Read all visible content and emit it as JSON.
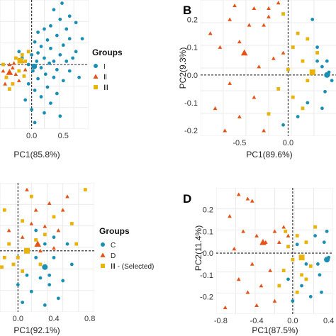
{
  "colors": {
    "circle": "#1a8fb3",
    "triangle": "#e3541a",
    "square": "#e8b40c"
  },
  "chart_data": [
    {
      "type": "scatter",
      "panel_label": "",
      "xlabel": "PC1(85.8%)",
      "ylabel": "",
      "xlim": [
        -0.5,
        0.9
      ],
      "ylim": [
        -1.0,
        1.0
      ],
      "xticks": [
        0.0,
        0.5
      ],
      "xtick_labels": [
        "0.0",
        "0.5"
      ],
      "yticks": [],
      "grid": true,
      "zero_lines": true,
      "legend": {
        "title": "Groups",
        "position": "right",
        "entries": [
          {
            "label": "I",
            "shape": "circle"
          },
          {
            "label": "Ⅱ",
            "shape": "triangle"
          },
          {
            "label": "Ⅲ",
            "shape": "square"
          }
        ]
      },
      "series": [
        {
          "shape": "circle",
          "big_point": [
            0.04,
            -0.03
          ],
          "points": [
            [
              0.48,
              0.95
            ],
            [
              0.35,
              0.85
            ],
            [
              0.6,
              0.75
            ],
            [
              0.45,
              0.7
            ],
            [
              0.7,
              0.65
            ],
            [
              0.3,
              0.6
            ],
            [
              0.2,
              0.55
            ],
            [
              0.55,
              0.55
            ],
            [
              0.1,
              0.5
            ],
            [
              0.4,
              0.45
            ],
            [
              0.6,
              0.4
            ],
            [
              0.25,
              0.38
            ],
            [
              0.05,
              0.35
            ],
            [
              0.5,
              0.3
            ],
            [
              0.15,
              0.28
            ],
            [
              0.3,
              0.25
            ],
            [
              0.7,
              0.2
            ],
            [
              0.1,
              0.18
            ],
            [
              0.45,
              0.15
            ],
            [
              0.0,
              0.15
            ],
            [
              0.2,
              0.1
            ],
            [
              0.35,
              0.05
            ],
            [
              0.55,
              0.05
            ],
            [
              0.08,
              0.05
            ],
            [
              0.28,
              0.02
            ],
            [
              -0.05,
              0.0
            ],
            [
              0.15,
              -0.05
            ],
            [
              0.4,
              -0.08
            ],
            [
              0.6,
              -0.1
            ],
            [
              0.02,
              -0.1
            ],
            [
              0.22,
              -0.15
            ],
            [
              0.35,
              -0.2
            ],
            [
              0.1,
              -0.22
            ],
            [
              0.5,
              -0.25
            ],
            [
              -0.05,
              -0.3
            ],
            [
              0.25,
              -0.35
            ],
            [
              0.05,
              -0.4
            ],
            [
              0.4,
              -0.45
            ],
            [
              0.15,
              -0.5
            ],
            [
              -0.1,
              -0.55
            ],
            [
              0.3,
              -0.6
            ],
            [
              0.0,
              -0.7
            ],
            [
              0.2,
              -0.75
            ],
            [
              0.45,
              -0.8
            ],
            [
              0.05,
              -0.9
            ],
            [
              0.75,
              -0.2
            ],
            [
              0.65,
              0.1
            ],
            [
              0.8,
              0.4
            ],
            [
              -0.2,
              0.2
            ],
            [
              -0.15,
              0.1
            ]
          ]
        },
        {
          "shape": "triangle",
          "big_point": [
            -0.35,
            -0.12
          ],
          "points": [
            [
              -0.45,
              -0.1
            ],
            [
              -0.4,
              -0.2
            ],
            [
              -0.3,
              -0.05
            ],
            [
              -0.25,
              -0.15
            ],
            [
              -0.2,
              -0.25
            ],
            [
              -0.35,
              0.0
            ],
            [
              -0.15,
              0.05
            ],
            [
              -0.1,
              -0.08
            ],
            [
              -0.42,
              -0.3
            ],
            [
              -0.28,
              0.02
            ]
          ]
        },
        {
          "shape": "square",
          "big_point": [
            -0.18,
            0.06
          ],
          "points": [
            [
              -0.4,
              -0.2
            ],
            [
              -0.3,
              -0.3
            ],
            [
              -0.25,
              0.1
            ],
            [
              -0.15,
              0.15
            ],
            [
              -0.2,
              -0.1
            ],
            [
              -0.45,
              0.0
            ],
            [
              -0.1,
              0.05
            ],
            [
              -0.05,
              0.2
            ],
            [
              -0.35,
              -0.38
            ],
            [
              -0.12,
              -0.18
            ]
          ]
        }
      ]
    },
    {
      "type": "scatter",
      "panel_label": "B",
      "xlabel": "PC1(89.6%)",
      "ylabel": "PC2(9.3%)",
      "xlim": [
        -0.9,
        0.5
      ],
      "ylim": [
        -0.22,
        0.27
      ],
      "xticks": [
        -0.5,
        0.0
      ],
      "xtick_labels": [
        "-0.5",
        "0.0"
      ],
      "yticks": [
        0.2,
        0.1,
        0.0,
        -0.1,
        -0.2
      ],
      "ytick_labels": [
        "0.2",
        "0.1",
        "0.0",
        "-0.1",
        "-0.2"
      ],
      "grid": true,
      "zero_lines": true,
      "series": [
        {
          "shape": "circle",
          "big_point": [
            0.4,
            0.0
          ],
          "points": [
            [
              0.25,
              0.2
            ],
            [
              0.3,
              0.1
            ],
            [
              0.35,
              0.03
            ],
            [
              0.42,
              0.01
            ],
            [
              0.45,
              -0.02
            ],
            [
              0.38,
              -0.06
            ],
            [
              0.3,
              0.05
            ],
            [
              0.2,
              -0.1
            ],
            [
              0.1,
              -0.15
            ],
            [
              -0.05,
              -0.18
            ],
            [
              0.35,
              -0.12
            ],
            [
              0.4,
              0.05
            ]
          ]
        },
        {
          "shape": "triangle",
          "big_point": [
            -0.45,
            0.08
          ],
          "points": [
            [
              -0.55,
              0.25
            ],
            [
              -0.35,
              0.24
            ],
            [
              -0.2,
              0.24
            ],
            [
              -0.1,
              0.26
            ],
            [
              -0.8,
              0.15
            ],
            [
              -0.6,
              0.2
            ],
            [
              -0.4,
              0.18
            ],
            [
              -0.25,
              0.18
            ],
            [
              -0.7,
              0.1
            ],
            [
              -0.5,
              0.12
            ],
            [
              -0.15,
              0.06
            ],
            [
              -0.3,
              0.03
            ],
            [
              -0.6,
              -0.03
            ],
            [
              -0.35,
              -0.08
            ],
            [
              -0.75,
              -0.12
            ],
            [
              -0.5,
              -0.15
            ],
            [
              -0.25,
              -0.2
            ],
            [
              -0.65,
              -0.2
            ],
            [
              -0.05,
              0.08
            ],
            [
              -0.2,
              0.21
            ]
          ]
        },
        {
          "shape": "square",
          "big_point": [
            0.25,
            0.01
          ],
          "points": [
            [
              0.1,
              0.15
            ],
            [
              0.2,
              0.13
            ],
            [
              0.05,
              0.1
            ],
            [
              0.15,
              0.05
            ],
            [
              0.0,
              0.02
            ],
            [
              -0.1,
              -0.05
            ],
            [
              0.05,
              -0.08
            ],
            [
              0.15,
              -0.12
            ],
            [
              -0.2,
              -0.14
            ],
            [
              0.2,
              -0.02
            ],
            [
              -0.05,
              0.22
            ],
            [
              0.3,
              0.08
            ]
          ]
        }
      ]
    },
    {
      "type": "scatter",
      "panel_label": "",
      "xlabel": "PC1(92.1%)",
      "ylabel": "",
      "xlim": [
        -0.2,
        0.85
      ],
      "ylim": [
        -0.45,
        0.5
      ],
      "xticks": [
        0.0,
        0.4,
        0.8
      ],
      "xtick_labels": [
        "0.0",
        "0.4",
        "0.8"
      ],
      "yticks": [],
      "grid": true,
      "zero_lines": true,
      "legend": {
        "title": "Groups",
        "position": "right",
        "entries": [
          {
            "label": "C",
            "shape": "circle"
          },
          {
            "label": "D",
            "shape": "triangle"
          },
          {
            "label": "Ⅲ - (Selected)",
            "shape": "square"
          }
        ]
      },
      "series": [
        {
          "shape": "circle",
          "big_point": [
            0.3,
            -0.12
          ],
          "points": [
            [
              0.2,
              0.15
            ],
            [
              0.3,
              0.05
            ],
            [
              0.4,
              -0.05
            ],
            [
              0.25,
              -0.2
            ],
            [
              0.35,
              -0.25
            ],
            [
              0.15,
              -0.3
            ],
            [
              0.1,
              -0.18
            ],
            [
              0.45,
              -0.35
            ],
            [
              0.3,
              -0.4
            ],
            [
              0.5,
              -0.22
            ],
            [
              0.05,
              -0.38
            ],
            [
              0.4,
              0.1
            ],
            [
              0.6,
              -0.1
            ],
            [
              0.2,
              -0.05
            ],
            [
              0.55,
              0.05
            ],
            [
              0.35,
              -0.18
            ],
            [
              0.0,
              -0.25
            ]
          ]
        },
        {
          "shape": "triangle",
          "big_point": [
            0.22,
            0.05
          ],
          "points": [
            [
              0.1,
              0.45
            ],
            [
              0.2,
              0.3
            ],
            [
              0.35,
              0.35
            ],
            [
              0.5,
              0.3
            ],
            [
              0.15,
              0.2
            ],
            [
              0.3,
              0.18
            ],
            [
              0.45,
              0.15
            ],
            [
              0.05,
              0.1
            ],
            [
              0.4,
              0.02
            ],
            [
              0.25,
              0.0
            ],
            [
              -0.1,
              0.15
            ],
            [
              0.55,
              0.4
            ]
          ]
        },
        {
          "shape": "square",
          "big_point": [
            0.1,
            0.0
          ],
          "points": [
            [
              0.75,
              0.45
            ],
            [
              0.6,
              0.2
            ],
            [
              0.4,
              0.25
            ],
            [
              0.3,
              0.12
            ],
            [
              0.2,
              0.08
            ],
            [
              -0.1,
              0.05
            ],
            [
              -0.05,
              -0.1
            ],
            [
              -0.15,
              -0.05
            ],
            [
              0.0,
              -0.05
            ],
            [
              0.05,
              -0.15
            ],
            [
              0.25,
              -0.1
            ],
            [
              -0.15,
              0.3
            ],
            [
              0.65,
              0.05
            ],
            [
              0.15,
              0.4
            ],
            [
              0.05,
              0.22
            ],
            [
              -0.18,
              -0.12
            ]
          ]
        }
      ]
    },
    {
      "type": "scatter",
      "panel_label": "D",
      "xlabel": "PC1(87.5%)",
      "ylabel": "PC2(11.4%)",
      "xlim": [
        -0.85,
        0.45
      ],
      "ylim": [
        -0.28,
        0.3
      ],
      "xticks": [
        -0.8,
        -0.4,
        0.0,
        0.4
      ],
      "xtick_labels": [
        "-0.8",
        "-0.4",
        "0.0",
        "0.4"
      ],
      "yticks": [
        0.2,
        0.1,
        0.0,
        -0.1,
        -0.2
      ],
      "ytick_labels": [
        "0.2",
        "0.1",
        "0.0",
        "-0.1",
        "-0.2"
      ],
      "grid": true,
      "zero_lines": true,
      "series": [
        {
          "shape": "circle",
          "big_point": [
            0.38,
            -0.03
          ],
          "points": [
            [
              0.35,
              0.05
            ],
            [
              0.4,
              -0.02
            ],
            [
              0.3,
              -0.1
            ],
            [
              0.25,
              0.08
            ],
            [
              0.15,
              -0.05
            ],
            [
              0.2,
              -0.2
            ],
            [
              0.1,
              -0.15
            ],
            [
              0.0,
              -0.22
            ],
            [
              0.32,
              -0.18
            ],
            [
              0.05,
              0.04
            ],
            [
              -0.05,
              -0.12
            ],
            [
              0.28,
              -0.05
            ],
            [
              0.38,
              0.1
            ]
          ]
        },
        {
          "shape": "triangle",
          "big_point": [
            -0.33,
            0.05
          ],
          "points": [
            [
              -0.6,
              0.27
            ],
            [
              -0.5,
              0.25
            ],
            [
              -0.45,
              0.24
            ],
            [
              -0.7,
              0.17
            ],
            [
              -0.55,
              0.1
            ],
            [
              -0.4,
              0.08
            ],
            [
              -0.3,
              0.05
            ],
            [
              -0.2,
              0.1
            ],
            [
              -0.1,
              0.12
            ],
            [
              -0.65,
              0.02
            ],
            [
              -0.45,
              -0.05
            ],
            [
              -0.25,
              -0.08
            ],
            [
              -0.6,
              -0.12
            ],
            [
              -0.35,
              -0.15
            ],
            [
              -0.5,
              -0.18
            ],
            [
              -0.2,
              -0.22
            ],
            [
              -0.75,
              -0.25
            ],
            [
              -0.4,
              -0.24
            ],
            [
              -0.15,
              0.05
            ],
            [
              -0.05,
              0.08
            ]
          ]
        },
        {
          "shape": "square",
          "big_point": [
            0.1,
            -0.02
          ],
          "points": [
            [
              0.05,
              0.08
            ],
            [
              0.15,
              0.05
            ],
            [
              -0.05,
              0.03
            ],
            [
              0.0,
              -0.03
            ],
            [
              0.2,
              -0.06
            ],
            [
              0.1,
              -0.1
            ],
            [
              -0.1,
              -0.08
            ],
            [
              0.25,
              0.12
            ],
            [
              -0.15,
              -0.15
            ],
            [
              0.05,
              -0.18
            ],
            [
              0.15,
              -0.12
            ],
            [
              -0.08,
              0.1
            ]
          ]
        }
      ]
    }
  ]
}
